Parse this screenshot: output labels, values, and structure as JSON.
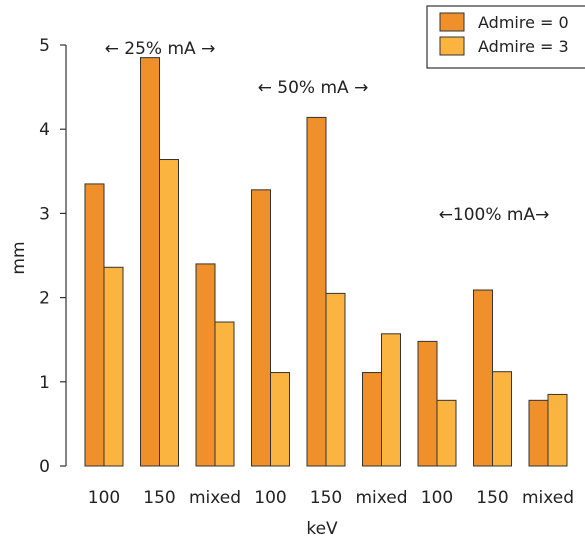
{
  "chart_data": {
    "type": "bar",
    "xlabel": "keV",
    "ylabel": "mm",
    "ylim": [
      0,
      5
    ],
    "yticks": [
      "0",
      "1",
      "2",
      "3",
      "4",
      "5"
    ],
    "categories": [
      "100",
      "150",
      "mixed",
      "100",
      "150",
      "mixed",
      "100",
      "150",
      "mixed"
    ],
    "series": [
      {
        "name": "Admire = 0",
        "color": "#f0902a",
        "values": [
          3.35,
          4.85,
          2.4,
          3.28,
          4.14,
          1.11,
          1.48,
          2.09,
          0.78
        ]
      },
      {
        "name": "Admire = 3",
        "color": "#fbb440",
        "values": [
          2.36,
          3.64,
          1.71,
          1.11,
          2.05,
          1.57,
          0.78,
          1.12,
          0.85
        ]
      }
    ],
    "annotations": [
      {
        "text": "← 25% mA →"
      },
      {
        "text": "← 50% mA →"
      },
      {
        "text": "←100% mA→"
      }
    ],
    "legend": "top-right"
  }
}
